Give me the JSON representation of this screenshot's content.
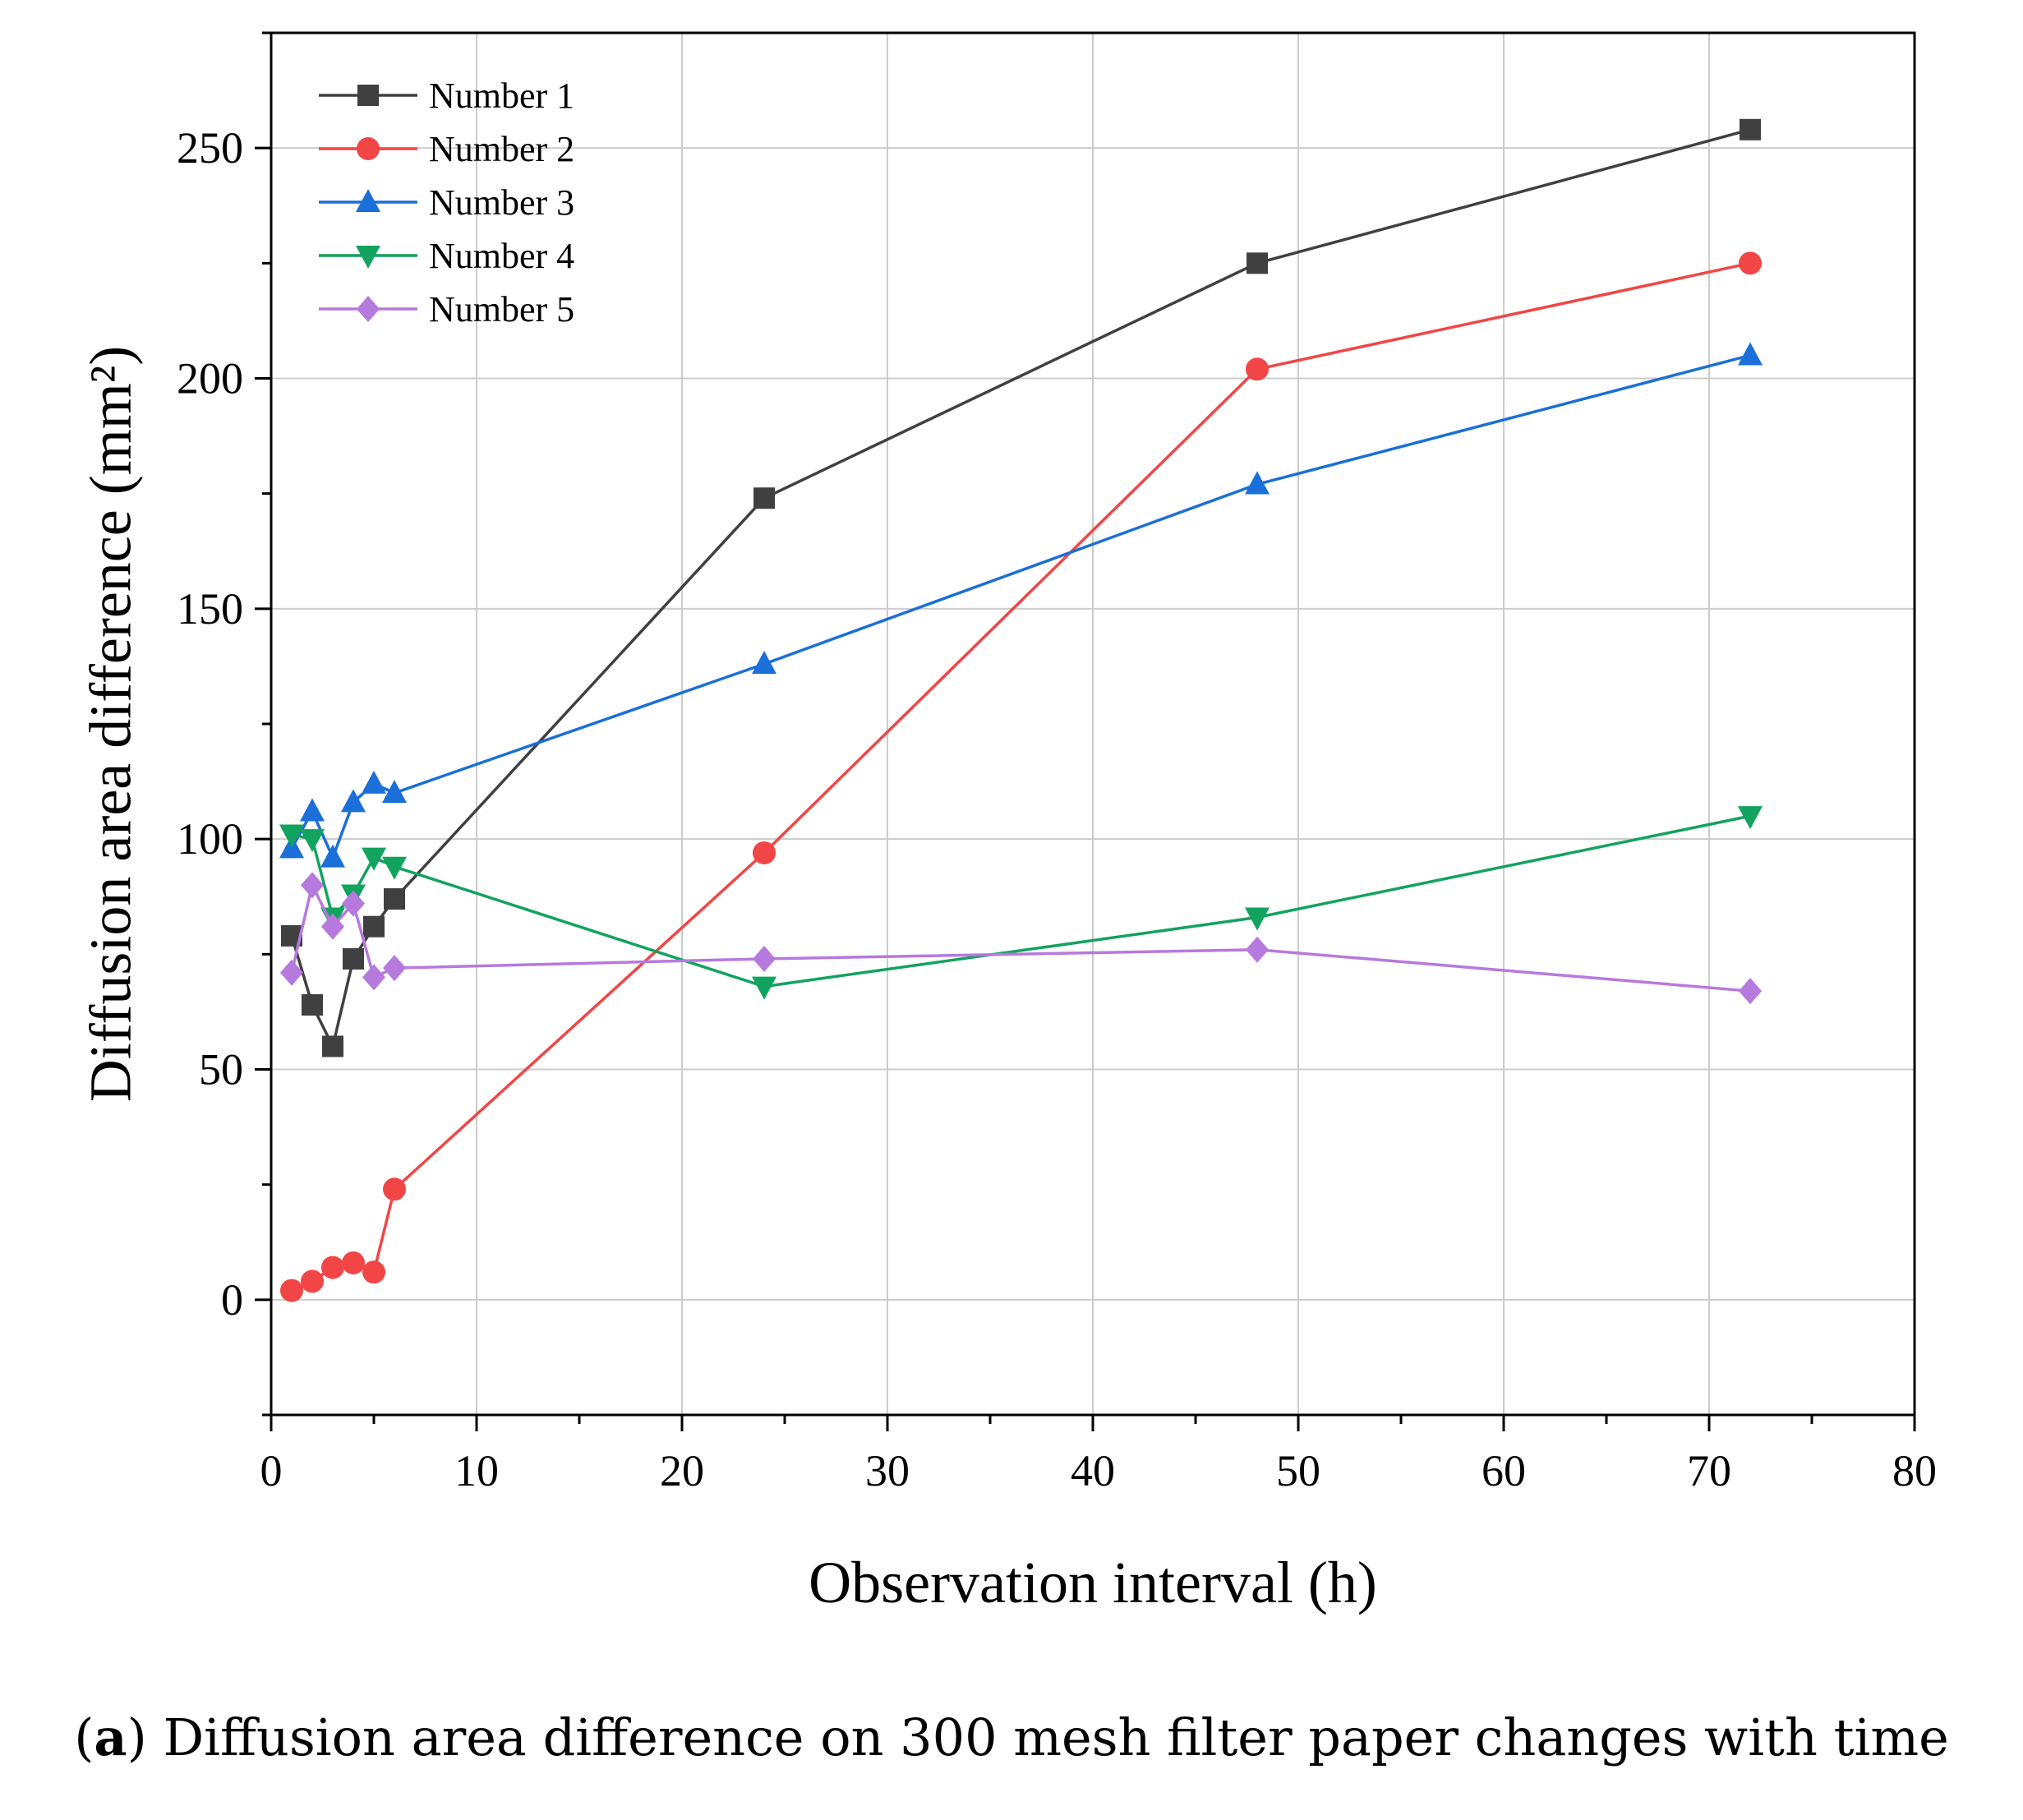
{
  "caption": {
    "open": "(",
    "letter": "a",
    "text": ") Diffusion area difference on 300 mesh filter paper changes with time"
  },
  "chart_data": {
    "type": "line",
    "title": "",
    "xlabel": "Observation interval (h)",
    "ylabel": "Diffusion area difference (mm²)",
    "xlim": [
      0,
      80
    ],
    "ylim": [
      -25,
      275
    ],
    "xticks": [
      0,
      10,
      20,
      30,
      40,
      50,
      60,
      70,
      80
    ],
    "yticks": [
      0,
      50,
      100,
      150,
      200,
      250
    ],
    "grid": true,
    "legend_position": "top-left",
    "x": [
      1,
      2,
      3,
      4,
      5,
      6,
      24,
      48,
      72
    ],
    "series": [
      {
        "name": "Number 1",
        "color": "#404040",
        "marker": "square",
        "values": [
          79,
          64,
          55,
          74,
          81,
          87,
          174,
          225,
          254
        ]
      },
      {
        "name": "Number 2",
        "color": "#f24545",
        "marker": "circle",
        "values": [
          2,
          4,
          7,
          8,
          6,
          24,
          97,
          202,
          225
        ]
      },
      {
        "name": "Number 3",
        "color": "#1a6fd8",
        "marker": "triangle-up",
        "values": [
          98,
          106,
          96,
          108,
          112,
          110,
          138,
          177,
          205
        ]
      },
      {
        "name": "Number 4",
        "color": "#12a35e",
        "marker": "triangle-down",
        "values": [
          101,
          100,
          83,
          88,
          96,
          94,
          68,
          83,
          105
        ]
      },
      {
        "name": "Number 5",
        "color": "#b679de",
        "marker": "diamond",
        "values": [
          71,
          90,
          81,
          86,
          70,
          72,
          74,
          76,
          67
        ]
      }
    ]
  }
}
